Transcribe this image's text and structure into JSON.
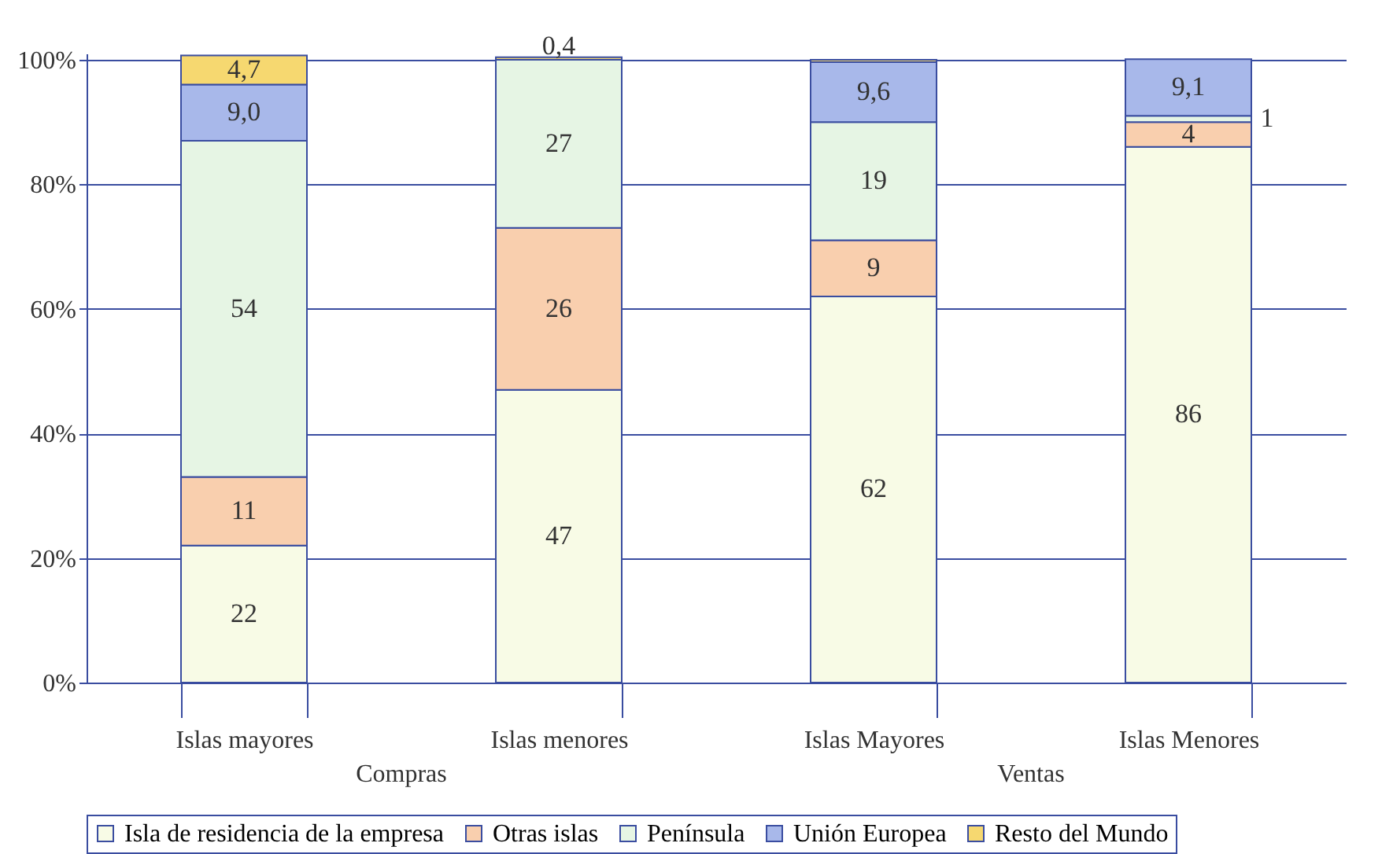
{
  "chart_data": {
    "type": "bar",
    "stacked": true,
    "categories": [
      "Islas mayores",
      "Islas menores",
      "Islas Mayores",
      "Islas Menores"
    ],
    "series": [
      {
        "name": "Isla de residencia de la empresa",
        "color": "#f8fbe6",
        "values": [
          22,
          47,
          62,
          86
        ],
        "value_labels": [
          "22",
          "47",
          "62",
          "86"
        ]
      },
      {
        "name": "Otras islas",
        "color": "#f9cfae",
        "values": [
          11,
          26,
          9,
          4
        ],
        "value_labels": [
          "11",
          "26",
          "9",
          "4"
        ]
      },
      {
        "name": "Península",
        "color": "#e6f5e4",
        "values": [
          54,
          27,
          19,
          1
        ],
        "value_labels": [
          "54",
          "27",
          "19",
          "1"
        ]
      },
      {
        "name": "Unión Europea",
        "color": "#a8b8ea",
        "values": [
          9.0,
          0,
          9.6,
          9.1
        ],
        "value_labels": [
          "9,0",
          null,
          "9,6",
          "9,1"
        ]
      },
      {
        "name": "Resto del Mundo",
        "color": "#f6d870",
        "values": [
          4.7,
          0.4,
          0.4,
          0
        ],
        "value_labels": [
          "4,7",
          "0,4",
          null,
          null
        ]
      }
    ],
    "ylim": [
      0,
      101
    ],
    "yticks": [
      {
        "value": 0,
        "label": "0%"
      },
      {
        "value": 20,
        "label": "20%"
      },
      {
        "value": 40,
        "label": "40%"
      },
      {
        "value": 60,
        "label": "60%"
      },
      {
        "value": 80,
        "label": "80%"
      },
      {
        "value": 100,
        "label": "100%"
      }
    ],
    "annotations": [
      "Compras",
      "Ventas"
    ],
    "grid": "y",
    "legend": "bottom"
  }
}
